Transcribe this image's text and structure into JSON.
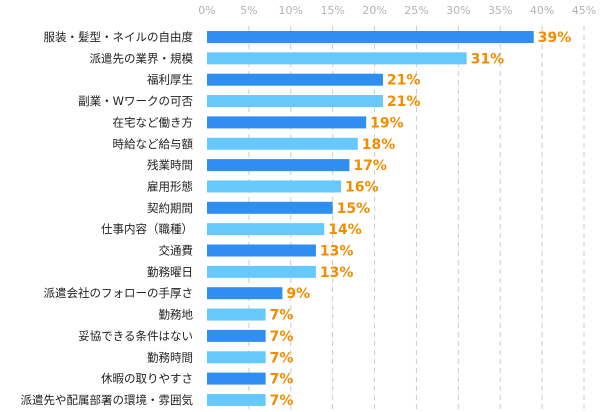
{
  "chart_data": {
    "type": "bar",
    "orientation": "horizontal",
    "title": "",
    "xlabel": "",
    "ylabel": "",
    "xlim": [
      0,
      45
    ],
    "ticks": [
      "0%",
      "5%",
      "10%",
      "15%",
      "20%",
      "25%",
      "30%",
      "35%",
      "40%",
      "45%"
    ],
    "tick_values": [
      0,
      5,
      10,
      15,
      20,
      25,
      30,
      35,
      40,
      45
    ],
    "grid": "vertical dashed",
    "categories": [
      "服装・髪型・ネイルの自由度",
      "派遣先の業界・規模",
      "福利厚生",
      "副業・Wワークの可否",
      "在宅など働き方",
      "時給など給与額",
      "残業時間",
      "雇用形態",
      "契約期間",
      "仕事内容（職種）",
      "交通費",
      "勤務曜日",
      "派遣会社のフォローの手厚さ",
      "勤務地",
      "妥協できる条件はない",
      "勤務時間",
      "休暇の取りやすさ",
      "派遣先や配属部署の環境・雰囲気"
    ],
    "values": [
      39,
      31,
      21,
      21,
      19,
      18,
      17,
      16,
      15,
      14,
      13,
      13,
      9,
      7,
      7,
      7,
      7,
      7
    ],
    "value_labels": [
      "39%",
      "31%",
      "21%",
      "21%",
      "19%",
      "18%",
      "17%",
      "16%",
      "15%",
      "14%",
      "13%",
      "13%",
      "9%",
      "7%",
      "7%",
      "7%",
      "7%",
      "7%"
    ],
    "colors": {
      "bar_dark": "#2e8ef2",
      "bar_light": "#66c8fb",
      "value": "#f28c00",
      "grid": "#cccccc",
      "tick": "#b4b4b4"
    }
  }
}
